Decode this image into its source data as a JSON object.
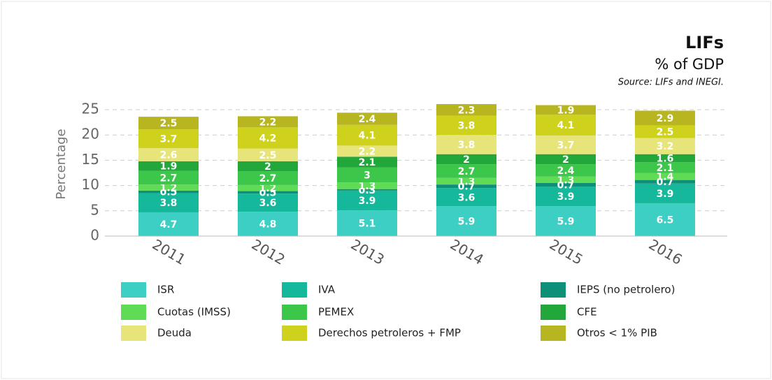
{
  "chart_data": {
    "type": "stacked_bar",
    "title": "LIFs",
    "subtitle": "% of GDP",
    "source": "Source: LIFs and INEGI.",
    "y_label": "Percentage",
    "categories": [
      "2011",
      "2012",
      "2013",
      "2014",
      "2015",
      "2016"
    ],
    "series": [
      {
        "name": "ISR",
        "color": "#3ecfc4",
        "values": [
          4.7,
          4.8,
          5.1,
          5.9,
          5.9,
          6.5
        ]
      },
      {
        "name": "IVA",
        "color": "#15b89a",
        "values": [
          3.8,
          3.6,
          3.9,
          3.6,
          3.9,
          3.9
        ]
      },
      {
        "name": "IEPS (no petrolero)",
        "color": "#0e8f78",
        "values": [
          0.5,
          0.5,
          0.3,
          0.7,
          0.7,
          0.7
        ]
      },
      {
        "name": "Cuotas (IMSS)",
        "color": "#5fdb55",
        "values": [
          1.2,
          1.2,
          1.3,
          1.3,
          1.3,
          1.4
        ]
      },
      {
        "name": "PEMEX",
        "color": "#3cc64a",
        "values": [
          2.7,
          2.7,
          3.0,
          2.7,
          2.4,
          2.1
        ]
      },
      {
        "name": "CFE",
        "color": "#22a83a",
        "values": [
          1.9,
          2.0,
          2.1,
          2.0,
          2.0,
          1.6
        ]
      },
      {
        "name": "Deuda",
        "color": "#e7e57a",
        "values": [
          2.6,
          2.5,
          2.2,
          3.8,
          3.7,
          3.2
        ]
      },
      {
        "name": "Derechos petroleros + FMP",
        "color": "#cfd21c",
        "values": [
          3.7,
          4.2,
          4.1,
          3.8,
          4.1,
          2.5
        ]
      },
      {
        "name": "Otros < 1% PIB",
        "color": "#b7b520",
        "values": [
          2.5,
          2.2,
          2.4,
          2.3,
          1.9,
          2.9
        ]
      }
    ],
    "ylim": [
      0,
      25
    ],
    "yticks": [
      0,
      5,
      10,
      15,
      20,
      25
    ],
    "grid": true
  }
}
